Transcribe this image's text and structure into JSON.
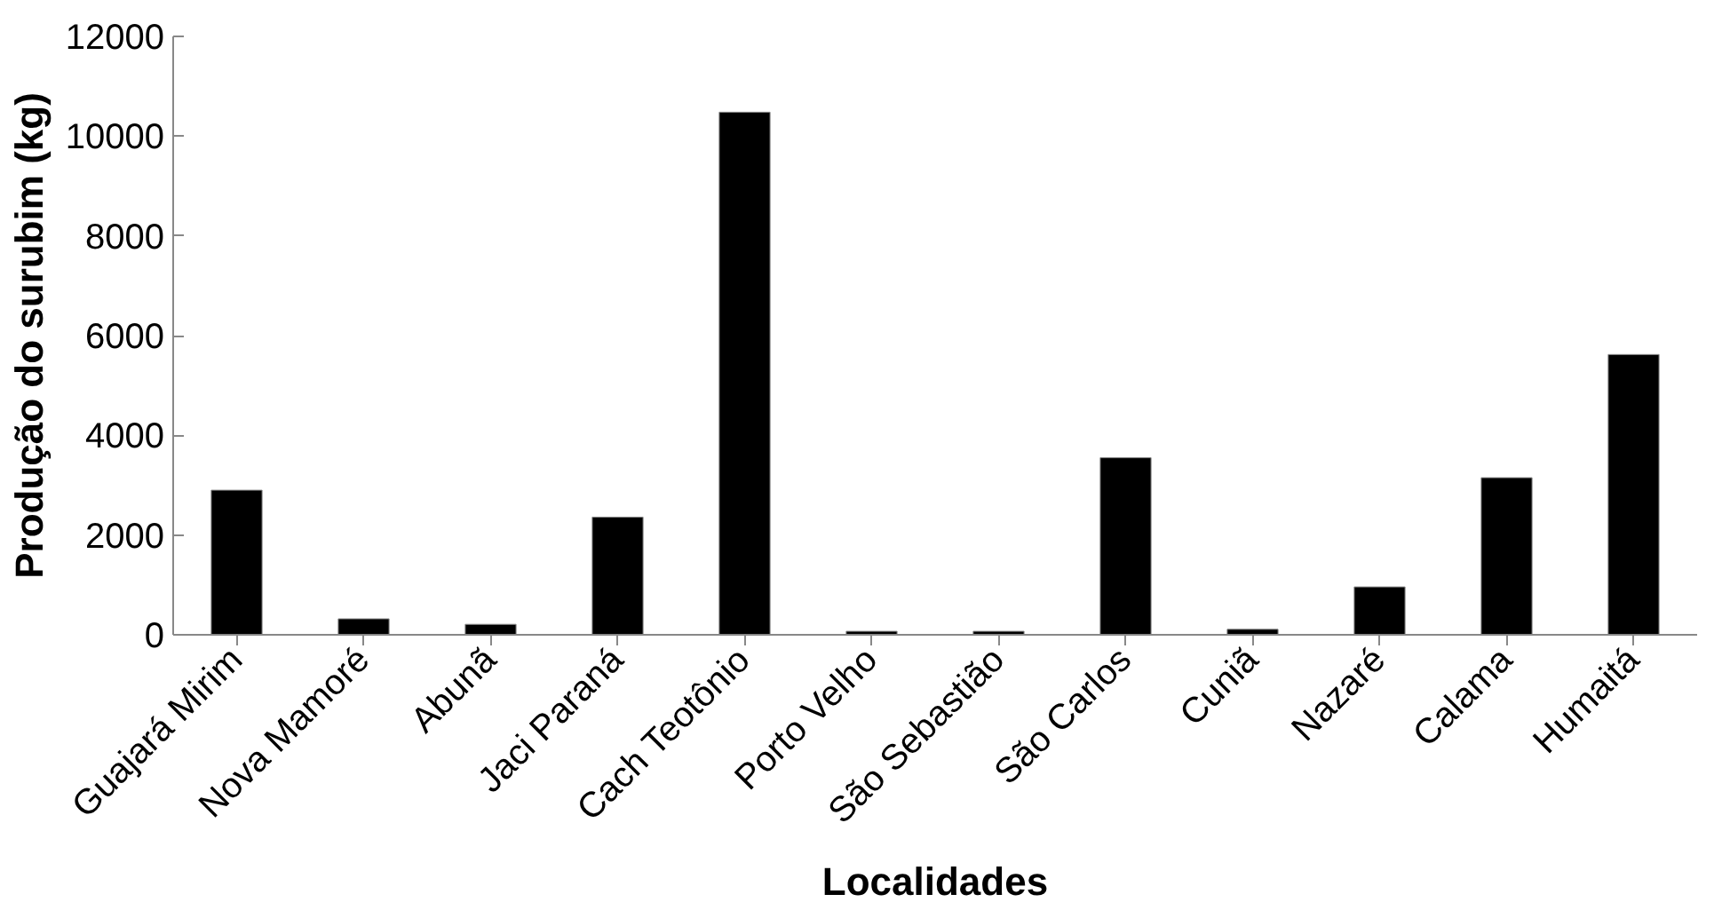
{
  "chart_data": {
    "type": "bar",
    "xlabel": "Localidades",
    "ylabel": "Produção do surubim (kg)",
    "categories": [
      "Guajará Mirim",
      "Nova Mamoré",
      "Abunã",
      "Jaci Paraná",
      "Cach Teotônio",
      "Porto Velho",
      "São Sebastião",
      "São Carlos",
      "Cuniã",
      "Nazaré",
      "Calama",
      "Humaitá"
    ],
    "values": [
      2900,
      320,
      210,
      2360,
      10480,
      70,
      70,
      3550,
      110,
      960,
      3150,
      5620
    ],
    "color": "#000000",
    "ylim": [
      0,
      12000
    ],
    "yticks": [
      0,
      2000,
      4000,
      6000,
      8000,
      10000,
      12000
    ],
    "grid": false
  }
}
